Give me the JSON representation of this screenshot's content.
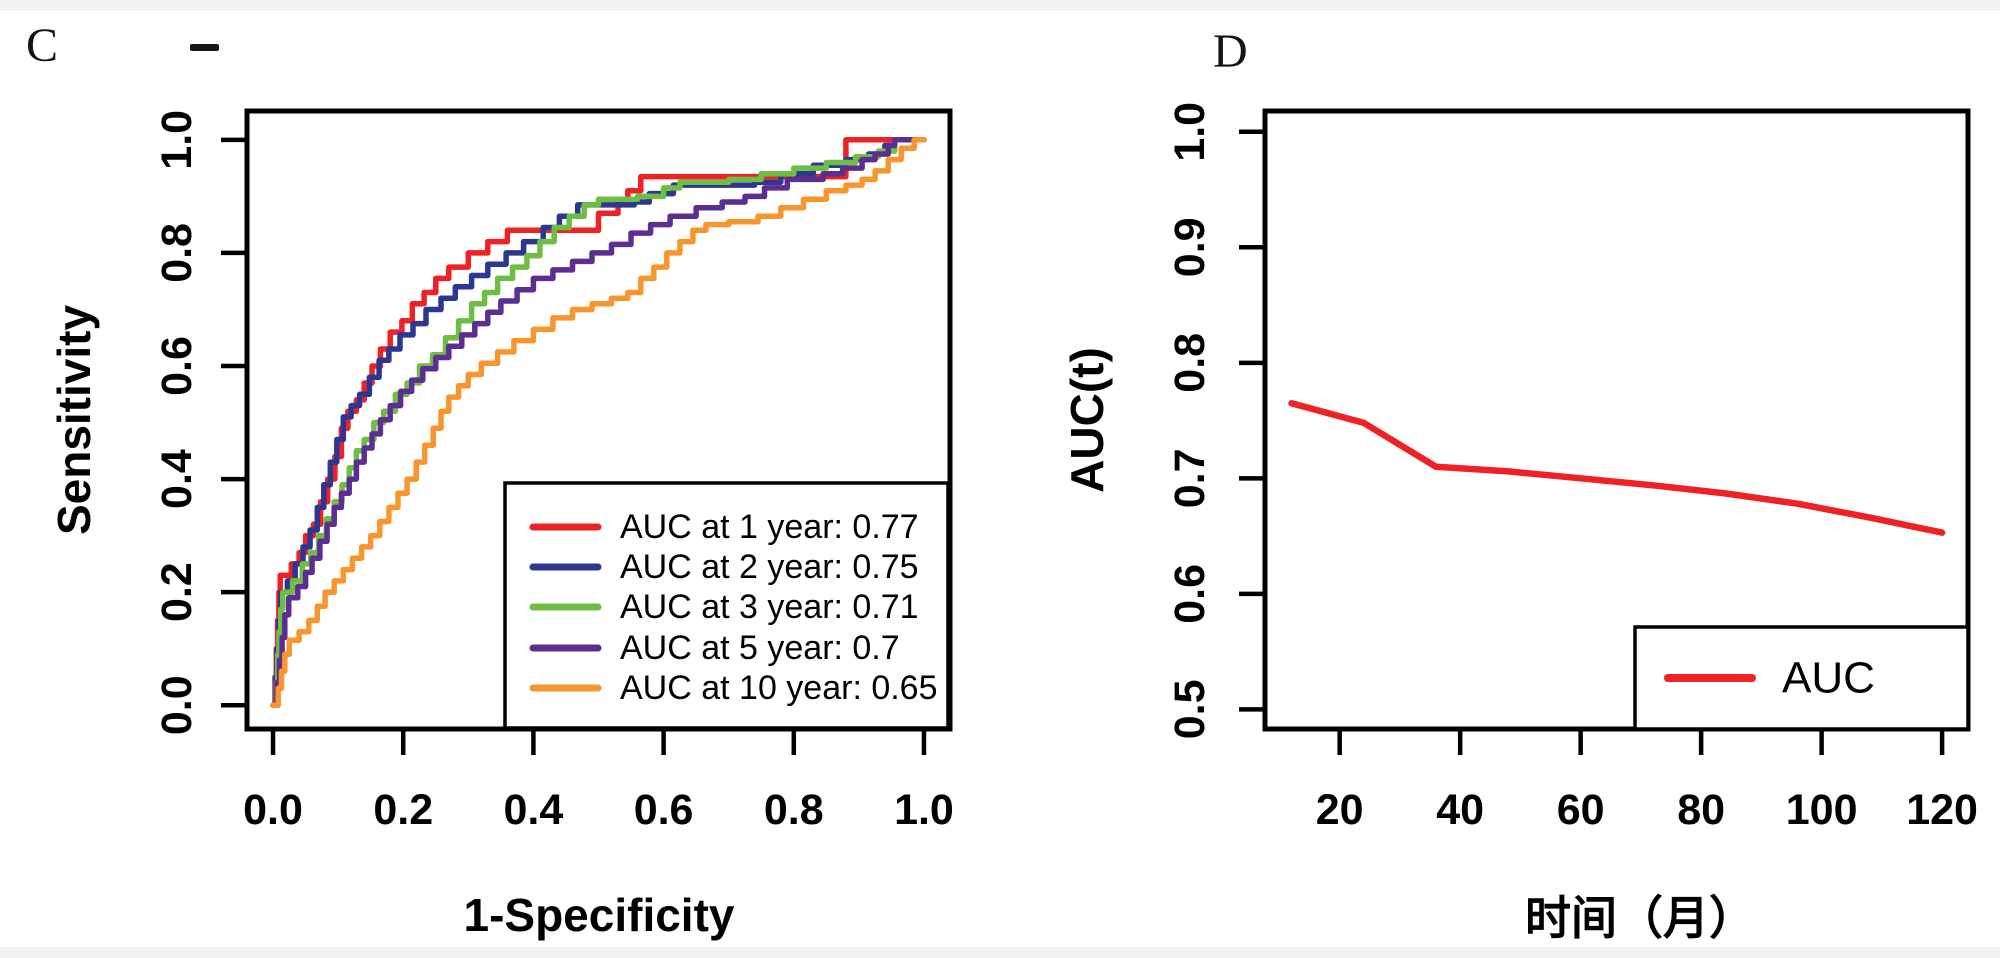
{
  "figure": {
    "background": "#FFFFFF",
    "axis_color": "#000000",
    "stray_mark": "short horizontal dash",
    "accent_colors": {
      "red": "#EE2224",
      "navy": "#2C3792",
      "green": "#6FBE44",
      "purple": "#5D2E91",
      "orange": "#F8962D"
    }
  },
  "chart_data": [
    {
      "id": "roc-panel",
      "panel_label": "C",
      "type": "line",
      "title": "",
      "xlabel": "1-Specificity",
      "ylabel": "Sensitivity",
      "xlim": [
        -0.04,
        1.04
      ],
      "ylim": [
        -0.042,
        1.051
      ],
      "xticks": [
        0,
        0.2,
        0.4,
        0.6,
        0.8,
        1.0
      ],
      "xtick_labels": [
        "0.0",
        "0.2",
        "0.4",
        "0.6",
        "0.8",
        "1.0"
      ],
      "yticks": [
        0,
        0.2,
        0.4,
        0.6,
        0.8,
        1.0
      ],
      "ytick_labels": [
        "0.0",
        "0.2",
        "0.4",
        "0.6",
        "0.8",
        "1.0"
      ],
      "grid": false,
      "legend": {
        "position": "bottom-right"
      },
      "series": [
        {
          "id": "auc-1-year",
          "label": "AUC at 1 year: 0.77",
          "auc": 0.77,
          "color": "#EE2224",
          "step": true,
          "points": [
            [
              0,
              0
            ],
            [
              0.003,
              0.05
            ],
            [
              0.005,
              0.1
            ],
            [
              0.007,
              0.15
            ],
            [
              0.009,
              0.2
            ],
            [
              0.011,
              0.23
            ],
            [
              0.028,
              0.25
            ],
            [
              0.04,
              0.27
            ],
            [
              0.05,
              0.3
            ],
            [
              0.062,
              0.32
            ],
            [
              0.073,
              0.36
            ],
            [
              0.084,
              0.4
            ],
            [
              0.095,
              0.44
            ],
            [
              0.105,
              0.49
            ],
            [
              0.115,
              0.52
            ],
            [
              0.128,
              0.54
            ],
            [
              0.14,
              0.57
            ],
            [
              0.152,
              0.6
            ],
            [
              0.165,
              0.63
            ],
            [
              0.18,
              0.66
            ],
            [
              0.198,
              0.68
            ],
            [
              0.214,
              0.71
            ],
            [
              0.232,
              0.73
            ],
            [
              0.25,
              0.755
            ],
            [
              0.27,
              0.775
            ],
            [
              0.3,
              0.8
            ],
            [
              0.33,
              0.82
            ],
            [
              0.36,
              0.84
            ],
            [
              0.48,
              0.84
            ],
            [
              0.5,
              0.87
            ],
            [
              0.53,
              0.89
            ],
            [
              0.545,
              0.91
            ],
            [
              0.565,
              0.935
            ],
            [
              0.875,
              0.935
            ],
            [
              0.88,
              1.0
            ],
            [
              1.0,
              1.0
            ]
          ]
        },
        {
          "id": "auc-2-year",
          "label": "AUC at 2 year: 0.75",
          "auc": 0.75,
          "color": "#2C3792",
          "step": true,
          "points": [
            [
              0,
              0
            ],
            [
              0.004,
              0.05
            ],
            [
              0.006,
              0.1
            ],
            [
              0.009,
              0.15
            ],
            [
              0.012,
              0.2
            ],
            [
              0.022,
              0.22
            ],
            [
              0.034,
              0.25
            ],
            [
              0.046,
              0.28
            ],
            [
              0.057,
              0.31
            ],
            [
              0.068,
              0.35
            ],
            [
              0.078,
              0.39
            ],
            [
              0.088,
              0.43
            ],
            [
              0.098,
              0.47
            ],
            [
              0.108,
              0.51
            ],
            [
              0.12,
              0.53
            ],
            [
              0.133,
              0.55
            ],
            [
              0.148,
              0.58
            ],
            [
              0.163,
              0.61
            ],
            [
              0.178,
              0.63
            ],
            [
              0.195,
              0.655
            ],
            [
              0.215,
              0.675
            ],
            [
              0.235,
              0.7
            ],
            [
              0.258,
              0.72
            ],
            [
              0.28,
              0.74
            ],
            [
              0.305,
              0.76
            ],
            [
              0.33,
              0.78
            ],
            [
              0.358,
              0.8
            ],
            [
              0.385,
              0.82
            ],
            [
              0.415,
              0.845
            ],
            [
              0.44,
              0.865
            ],
            [
              0.468,
              0.885
            ],
            [
              0.555,
              0.89
            ],
            [
              0.578,
              0.905
            ],
            [
              0.615,
              0.92
            ],
            [
              0.74,
              0.925
            ],
            [
              0.78,
              0.94
            ],
            [
              0.83,
              0.955
            ],
            [
              0.88,
              0.965
            ],
            [
              0.915,
              0.975
            ],
            [
              0.94,
              0.99
            ],
            [
              0.955,
              1.0
            ],
            [
              1.0,
              1.0
            ]
          ]
        },
        {
          "id": "auc-3-year",
          "label": "AUC at 3 year: 0.71",
          "auc": 0.71,
          "color": "#6FBE44",
          "step": true,
          "points": [
            [
              0,
              0
            ],
            [
              0.005,
              0.04
            ],
            [
              0.007,
              0.09
            ],
            [
              0.009,
              0.13
            ],
            [
              0.012,
              0.17
            ],
            [
              0.015,
              0.2
            ],
            [
              0.03,
              0.22
            ],
            [
              0.045,
              0.25
            ],
            [
              0.058,
              0.27
            ],
            [
              0.07,
              0.3
            ],
            [
              0.082,
              0.33
            ],
            [
              0.094,
              0.36
            ],
            [
              0.106,
              0.39
            ],
            [
              0.117,
              0.42
            ],
            [
              0.128,
              0.45
            ],
            [
              0.14,
              0.47
            ],
            [
              0.155,
              0.5
            ],
            [
              0.17,
              0.52
            ],
            [
              0.188,
              0.55
            ],
            [
              0.206,
              0.57
            ],
            [
              0.225,
              0.6
            ],
            [
              0.245,
              0.62
            ],
            [
              0.265,
              0.65
            ],
            [
              0.285,
              0.68
            ],
            [
              0.305,
              0.71
            ],
            [
              0.325,
              0.73
            ],
            [
              0.345,
              0.755
            ],
            [
              0.368,
              0.775
            ],
            [
              0.39,
              0.795
            ],
            [
              0.41,
              0.82
            ],
            [
              0.432,
              0.845
            ],
            [
              0.455,
              0.865
            ],
            [
              0.478,
              0.885
            ],
            [
              0.5,
              0.895
            ],
            [
              0.56,
              0.9
            ],
            [
              0.6,
              0.915
            ],
            [
              0.625,
              0.925
            ],
            [
              0.7,
              0.93
            ],
            [
              0.75,
              0.94
            ],
            [
              0.8,
              0.95
            ],
            [
              0.85,
              0.96
            ],
            [
              0.895,
              0.97
            ],
            [
              0.93,
              0.98
            ],
            [
              0.955,
              1.0
            ],
            [
              1.0,
              1.0
            ]
          ]
        },
        {
          "id": "auc-5-year",
          "label": "AUC at 5 year: 0.7",
          "auc": 0.7,
          "color": "#5D2E91",
          "step": true,
          "points": [
            [
              0,
              0
            ],
            [
              0.006,
              0.04
            ],
            [
              0.01,
              0.08
            ],
            [
              0.014,
              0.12
            ],
            [
              0.018,
              0.16
            ],
            [
              0.024,
              0.19
            ],
            [
              0.038,
              0.21
            ],
            [
              0.05,
              0.235
            ],
            [
              0.06,
              0.26
            ],
            [
              0.072,
              0.29
            ],
            [
              0.083,
              0.32
            ],
            [
              0.094,
              0.35
            ],
            [
              0.105,
              0.375
            ],
            [
              0.117,
              0.4
            ],
            [
              0.128,
              0.43
            ],
            [
              0.14,
              0.455
            ],
            [
              0.152,
              0.48
            ],
            [
              0.165,
              0.505
            ],
            [
              0.18,
              0.53
            ],
            [
              0.196,
              0.555
            ],
            [
              0.213,
              0.575
            ],
            [
              0.23,
              0.595
            ],
            [
              0.25,
              0.615
            ],
            [
              0.27,
              0.635
            ],
            [
              0.29,
              0.655
            ],
            [
              0.31,
              0.675
            ],
            [
              0.33,
              0.695
            ],
            [
              0.35,
              0.715
            ],
            [
              0.375,
              0.735
            ],
            [
              0.4,
              0.755
            ],
            [
              0.43,
              0.77
            ],
            [
              0.46,
              0.785
            ],
            [
              0.49,
              0.8
            ],
            [
              0.52,
              0.815
            ],
            [
              0.55,
              0.835
            ],
            [
              0.58,
              0.85
            ],
            [
              0.61,
              0.865
            ],
            [
              0.65,
              0.88
            ],
            [
              0.69,
              0.89
            ],
            [
              0.725,
              0.9
            ],
            [
              0.755,
              0.915
            ],
            [
              0.79,
              0.93
            ],
            [
              0.845,
              0.94
            ],
            [
              0.875,
              0.95
            ],
            [
              0.905,
              0.965
            ],
            [
              0.925,
              0.975
            ],
            [
              0.945,
              0.99
            ],
            [
              0.955,
              1.0
            ],
            [
              1.0,
              1.0
            ]
          ]
        },
        {
          "id": "auc-10-year",
          "label": "AUC at 10 year: 0.65",
          "auc": 0.65,
          "color": "#F8962D",
          "step": true,
          "points": [
            [
              0,
              0
            ],
            [
              0.008,
              0.03
            ],
            [
              0.013,
              0.06
            ],
            [
              0.018,
              0.09
            ],
            [
              0.025,
              0.115
            ],
            [
              0.04,
              0.13
            ],
            [
              0.055,
              0.15
            ],
            [
              0.068,
              0.175
            ],
            [
              0.08,
              0.2
            ],
            [
              0.094,
              0.22
            ],
            [
              0.108,
              0.24
            ],
            [
              0.122,
              0.26
            ],
            [
              0.136,
              0.28
            ],
            [
              0.15,
              0.3
            ],
            [
              0.164,
              0.325
            ],
            [
              0.178,
              0.35
            ],
            [
              0.192,
              0.375
            ],
            [
              0.206,
              0.4
            ],
            [
              0.22,
              0.43
            ],
            [
              0.233,
              0.46
            ],
            [
              0.246,
              0.49
            ],
            [
              0.258,
              0.52
            ],
            [
              0.27,
              0.545
            ],
            [
              0.285,
              0.565
            ],
            [
              0.3,
              0.585
            ],
            [
              0.32,
              0.605
            ],
            [
              0.345,
              0.625
            ],
            [
              0.37,
              0.645
            ],
            [
              0.4,
              0.665
            ],
            [
              0.43,
              0.685
            ],
            [
              0.46,
              0.7
            ],
            [
              0.49,
              0.71
            ],
            [
              0.52,
              0.72
            ],
            [
              0.545,
              0.73
            ],
            [
              0.565,
              0.755
            ],
            [
              0.585,
              0.775
            ],
            [
              0.605,
              0.8
            ],
            [
              0.625,
              0.82
            ],
            [
              0.645,
              0.84
            ],
            [
              0.665,
              0.85
            ],
            [
              0.7,
              0.855
            ],
            [
              0.745,
              0.865
            ],
            [
              0.78,
              0.88
            ],
            [
              0.815,
              0.895
            ],
            [
              0.85,
              0.91
            ],
            [
              0.88,
              0.92
            ],
            [
              0.905,
              0.93
            ],
            [
              0.925,
              0.945
            ],
            [
              0.945,
              0.965
            ],
            [
              0.965,
              0.985
            ],
            [
              0.985,
              1.0
            ],
            [
              1.0,
              1.0
            ]
          ]
        }
      ]
    },
    {
      "id": "auc-time-panel",
      "panel_label": "D",
      "type": "line",
      "title": "",
      "xlabel": "时间（月）",
      "ylabel": "AUC(t)",
      "xlim": [
        7.6,
        124.3
      ],
      "ylim": [
        0.483,
        1.018
      ],
      "xticks": [
        20,
        40,
        60,
        80,
        100,
        120
      ],
      "xtick_labels": [
        "20",
        "40",
        "60",
        "80",
        "100",
        "120"
      ],
      "yticks": [
        0.5,
        0.6,
        0.7,
        0.8,
        0.9,
        1.0
      ],
      "ytick_labels": [
        "0.5",
        "0.6",
        "0.7",
        "0.8",
        "0.9",
        "1.0"
      ],
      "grid": false,
      "legend": {
        "position": "bottom-right"
      },
      "series": [
        {
          "id": "auc-t",
          "label": "AUC",
          "color": "#EE2224",
          "step": false,
          "points": [
            [
              12,
              0.765
            ],
            [
              24,
              0.748
            ],
            [
              36,
              0.71
            ],
            [
              48,
              0.706
            ],
            [
              60,
              0.7
            ],
            [
              72,
              0.694
            ],
            [
              84,
              0.687
            ],
            [
              96,
              0.678
            ],
            [
              108,
              0.666
            ],
            [
              120,
              0.653
            ]
          ]
        }
      ]
    }
  ]
}
